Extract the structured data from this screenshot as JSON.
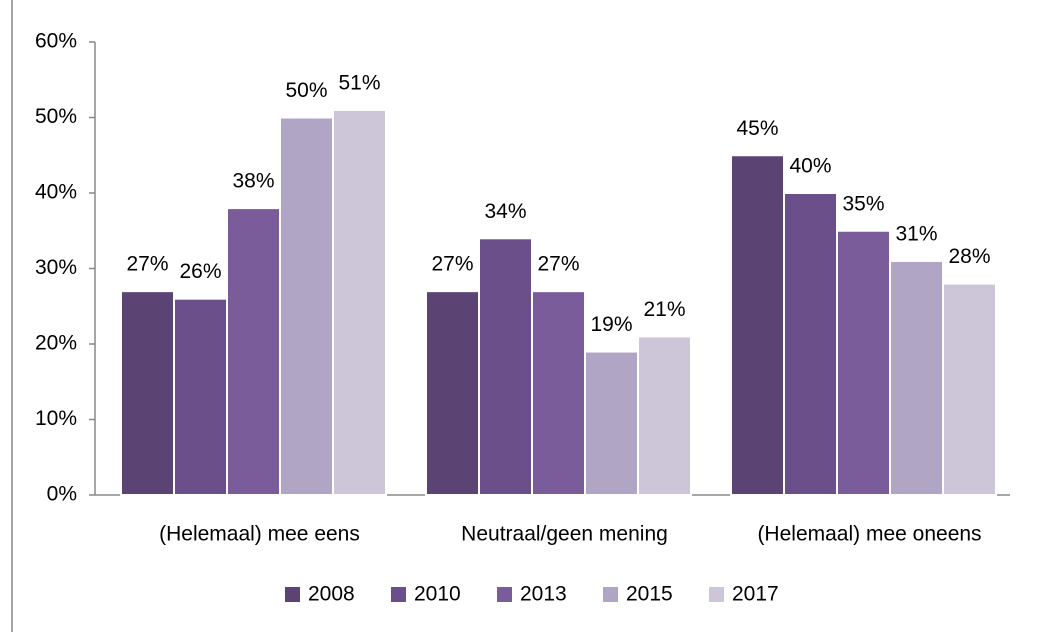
{
  "chart_data": {
    "type": "bar",
    "categories": [
      "(Helemaal) mee eens",
      "Neutraal/geen mening",
      "(Helemaal) mee oneens"
    ],
    "series": [
      {
        "name": "2008",
        "color": "#5b4473",
        "values": [
          27,
          27,
          45
        ],
        "value_labels": [
          "27%",
          "27%",
          "45%"
        ]
      },
      {
        "name": "2010",
        "color": "#6a4f8a",
        "values": [
          26,
          34,
          40
        ],
        "value_labels": [
          "26%",
          "34%",
          "40%"
        ]
      },
      {
        "name": "2013",
        "color": "#7b5c9b",
        "values": [
          38,
          27,
          35
        ],
        "value_labels": [
          "38%",
          "27%",
          "35%"
        ]
      },
      {
        "name": "2015",
        "color": "#b1a5c5",
        "values": [
          50,
          19,
          31
        ],
        "value_labels": [
          "50%",
          "19%",
          "31%"
        ]
      },
      {
        "name": "2017",
        "color": "#cdc6d9",
        "values": [
          51,
          21,
          28
        ],
        "value_labels": [
          "51%",
          "21%",
          "28%"
        ]
      }
    ],
    "ylim": [
      0,
      60
    ],
    "yticks": [
      {
        "value": 0,
        "label": "0%"
      },
      {
        "value": 10,
        "label": "10%"
      },
      {
        "value": 20,
        "label": "20%"
      },
      {
        "value": 30,
        "label": "30%"
      },
      {
        "value": 40,
        "label": "40%"
      },
      {
        "value": 50,
        "label": "50%"
      },
      {
        "value": 60,
        "label": "60%"
      }
    ],
    "grid": false,
    "legend": "bottom"
  }
}
